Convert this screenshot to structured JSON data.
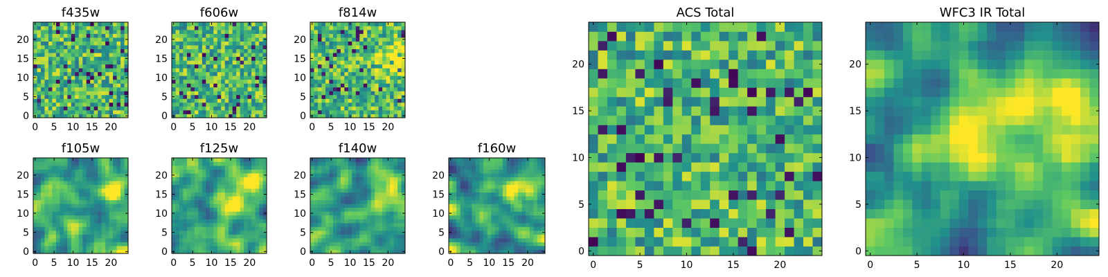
{
  "chart_data": [
    {
      "type": "heatmap",
      "title": "f435w",
      "xlim": [
        0,
        24
      ],
      "ylim": [
        0,
        24
      ],
      "xticks": [
        "0",
        "5",
        "10",
        "15",
        "20"
      ],
      "yticks": [
        "0",
        "5",
        "10",
        "15",
        "20"
      ],
      "texture": "noise",
      "bright_regions": []
    },
    {
      "type": "heatmap",
      "title": "f606w",
      "xlim": [
        0,
        24
      ],
      "ylim": [
        0,
        24
      ],
      "xticks": [
        "0",
        "5",
        "10",
        "15",
        "20"
      ],
      "yticks": [
        "0",
        "5",
        "10",
        "15",
        "20"
      ],
      "texture": "noise",
      "bright_regions": []
    },
    {
      "type": "heatmap",
      "title": "f814w",
      "xlim": [
        0,
        24
      ],
      "ylim": [
        0,
        24
      ],
      "xticks": [
        "0",
        "5",
        "10",
        "15",
        "20"
      ],
      "yticks": [
        "0",
        "5",
        "10",
        "15",
        "20"
      ],
      "texture": "noise",
      "bright_regions": [
        {
          "x": 22,
          "y": 15
        }
      ]
    },
    {
      "type": "heatmap",
      "title": "f105w",
      "xlim": [
        0,
        24
      ],
      "ylim": [
        0,
        24
      ],
      "xticks": [
        "0",
        "5",
        "10",
        "15",
        "20"
      ],
      "yticks": [
        "0",
        "5",
        "10",
        "15",
        "20"
      ],
      "texture": "smooth",
      "bright_regions": [
        {
          "x": 20,
          "y": 15
        }
      ]
    },
    {
      "type": "heatmap",
      "title": "f125w",
      "xlim": [
        0,
        24
      ],
      "ylim": [
        0,
        24
      ],
      "xticks": [
        "0",
        "5",
        "10",
        "15",
        "20"
      ],
      "yticks": [
        "0",
        "5",
        "10",
        "15",
        "20"
      ],
      "texture": "smooth",
      "bright_regions": [
        {
          "x": 20,
          "y": 17
        },
        {
          "x": 14,
          "y": 12
        }
      ]
    },
    {
      "type": "heatmap",
      "title": "f140w",
      "xlim": [
        0,
        24
      ],
      "ylim": [
        0,
        24
      ],
      "xticks": [
        "0",
        "5",
        "10",
        "15",
        "20"
      ],
      "yticks": [
        "0",
        "5",
        "10",
        "15",
        "20"
      ],
      "texture": "smooth",
      "bright_regions": [
        {
          "x": 20,
          "y": 17
        }
      ]
    },
    {
      "type": "heatmap",
      "title": "f160w",
      "xlim": [
        0,
        24
      ],
      "ylim": [
        0,
        24
      ],
      "xticks": [
        "0",
        "5",
        "10",
        "15",
        "20"
      ],
      "yticks": [
        "0",
        "5",
        "10",
        "15",
        "20"
      ],
      "texture": "smooth",
      "bright_regions": [
        {
          "x": 20,
          "y": 16
        }
      ]
    },
    {
      "type": "heatmap",
      "title": "ACS Total",
      "xlim": [
        0,
        24
      ],
      "ylim": [
        0,
        24
      ],
      "xticks": [
        "0",
        "5",
        "10",
        "15",
        "20"
      ],
      "yticks": [
        "0",
        "5",
        "10",
        "15",
        "20"
      ],
      "texture": "noise",
      "bright_regions": []
    },
    {
      "type": "heatmap",
      "title": "WFC3 IR Total",
      "xlim": [
        0,
        24
      ],
      "ylim": [
        0,
        24
      ],
      "xticks": [
        "0",
        "5",
        "10",
        "15",
        "20"
      ],
      "yticks": [
        "0",
        "5",
        "10",
        "15",
        "20"
      ],
      "texture": "smooth",
      "bright_regions": [
        {
          "x": 20,
          "y": 16
        },
        {
          "x": 12,
          "y": 12
        }
      ]
    }
  ],
  "colormap": [
    "#440154",
    "#3b528b",
    "#21918c",
    "#5ec962",
    "#fde725"
  ]
}
